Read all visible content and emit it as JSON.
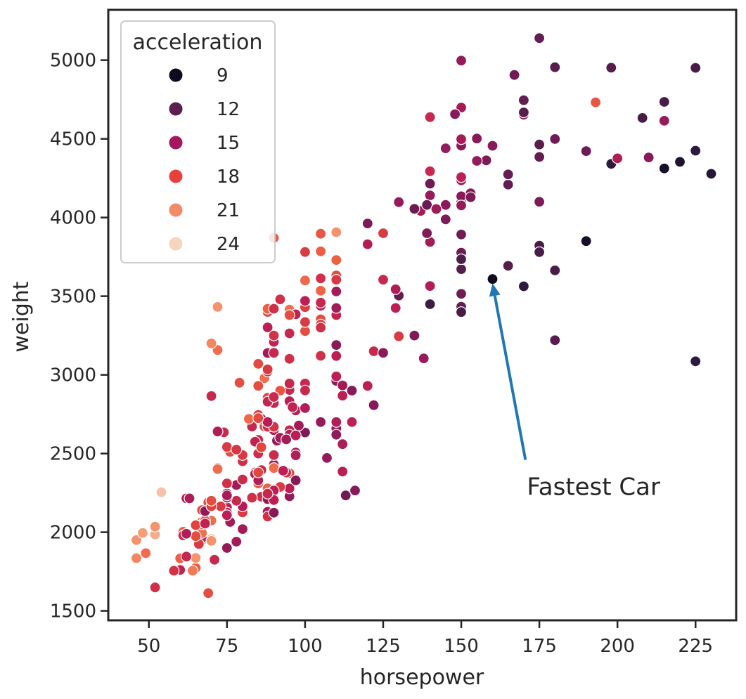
{
  "chart_data": {
    "type": "scatter",
    "xlabel": "horsepower",
    "ylabel": "weight",
    "xlim": [
      37,
      238
    ],
    "ylim": [
      1440,
      5320
    ],
    "x_ticks": [
      50,
      75,
      100,
      125,
      150,
      175,
      200,
      225
    ],
    "y_ticks": [
      1500,
      2000,
      2500,
      3000,
      3500,
      4000,
      4500,
      5000
    ],
    "hue_name": "acceleration",
    "legend": {
      "title": "acceleration",
      "placement": "upper-left",
      "entries": [
        {
          "label": "9",
          "value": 9,
          "color": "#0f0a1e"
        },
        {
          "label": "12",
          "value": 12,
          "color": "#5c1d4f"
        },
        {
          "label": "15",
          "value": 15,
          "color": "#a5175a"
        },
        {
          "label": "18",
          "value": 18,
          "color": "#e8413d"
        },
        {
          "label": "21",
          "value": 21,
          "color": "#f28b68"
        },
        {
          "label": "24",
          "value": 24,
          "color": "#f6d5c0"
        }
      ]
    },
    "annotation": {
      "text": "Fastest Car",
      "point": [
        160,
        3609
      ],
      "text_position": [
        171,
        2290
      ],
      "arrow_color": "#1f77b4"
    },
    "points": [
      [
        130,
        3504,
        12
      ],
      [
        165,
        3693,
        11.5
      ],
      [
        150,
        3436,
        11
      ],
      [
        150,
        3433,
        12
      ],
      [
        140,
        3449,
        10.5
      ],
      [
        198,
        4341,
        10
      ],
      [
        220,
        4354,
        9
      ],
      [
        215,
        4312,
        8.5
      ],
      [
        225,
        4425,
        10
      ],
      [
        190,
        3850,
        8.5
      ],
      [
        170,
        3563,
        10
      ],
      [
        160,
        3609,
        8
      ],
      [
        150,
        3761,
        9.5
      ],
      [
        225,
        3086,
        10
      ],
      [
        95,
        2372,
        15
      ],
      [
        95,
        2833,
        15.5
      ],
      [
        97,
        2774,
        15.5
      ],
      [
        85,
        2587,
        16
      ],
      [
        88,
        2130,
        14.5
      ],
      [
        46,
        1835,
        20.5
      ],
      [
        87,
        2672,
        17.5
      ],
      [
        90,
        2430,
        14.5
      ],
      [
        95,
        2375,
        17.5
      ],
      [
        113,
        2234,
        12.5
      ],
      [
        90,
        2648,
        15
      ],
      [
        215,
        4615,
        14
      ],
      [
        200,
        4376,
        15
      ],
      [
        210,
        4382,
        13.5
      ],
      [
        193,
        4732,
        18.5
      ],
      [
        88,
        2130,
        14.5
      ],
      [
        90,
        2264,
        15.5
      ],
      [
        95,
        2228,
        14
      ],
      [
        100,
        2634,
        13
      ],
      [
        105,
        3439,
        15.5
      ],
      [
        100,
        3329,
        15.5
      ],
      [
        88,
        3302,
        15.5
      ],
      [
        100,
        3288,
        15.5
      ],
      [
        165,
        4209,
        12
      ],
      [
        175,
        4464,
        11.5
      ],
      [
        153,
        4154,
        13.5
      ],
      [
        150,
        4096,
        13
      ],
      [
        180,
        4955,
        11.5
      ],
      [
        170,
        4746,
        12
      ],
      [
        175,
        5140,
        12
      ],
      [
        110,
        2962,
        13.5
      ],
      [
        72,
        2408,
        19
      ],
      [
        100,
        3282,
        15
      ],
      [
        88,
        3139,
        14.5
      ],
      [
        86,
        2220,
        14
      ],
      [
        90,
        2123,
        14
      ],
      [
        70,
        2074,
        19.5
      ],
      [
        76,
        2065,
        14.5
      ],
      [
        65,
        1773,
        19
      ],
      [
        69,
        1613,
        18
      ],
      [
        60,
        1834,
        19
      ],
      [
        70,
        1955,
        20.5
      ],
      [
        95,
        2278,
        15.5
      ],
      [
        80,
        2126,
        17
      ],
      [
        54,
        2254,
        23.5
      ],
      [
        90,
        2408,
        19.5
      ],
      [
        86,
        2226,
        16.5
      ],
      [
        165,
        4274,
        12
      ],
      [
        175,
        4385,
        12
      ],
      [
        150,
        4135,
        13.5
      ],
      [
        153,
        4129,
        13
      ],
      [
        150,
        3672,
        11.5
      ],
      [
        208,
        4633,
        11
      ],
      [
        155,
        4502,
        13.5
      ],
      [
        160,
        4456,
        13.5
      ],
      [
        190,
        4422,
        12.5
      ],
      [
        97,
        2330,
        13.5
      ],
      [
        150,
        3892,
        12.5
      ],
      [
        130,
        4098,
        14
      ],
      [
        140,
        4294,
        16
      ],
      [
        150,
        4077,
        14
      ],
      [
        112,
        2933,
        14.5
      ],
      [
        76,
        2511,
        18
      ],
      [
        87,
        2979,
        19.5
      ],
      [
        69,
        2189,
        18
      ],
      [
        86,
        2395,
        16
      ],
      [
        92,
        2288,
        17
      ],
      [
        97,
        2506,
        14.5
      ],
      [
        80,
        2164,
        15
      ],
      [
        88,
        2100,
        16.5
      ],
      [
        175,
        4100,
        13
      ],
      [
        150,
        3672,
        11.5
      ],
      [
        145,
        3988,
        13
      ],
      [
        137,
        4042,
        14.5
      ],
      [
        150,
        3777,
        12.5
      ],
      [
        198,
        4952,
        11.5
      ],
      [
        150,
        4464,
        12
      ],
      [
        158,
        4363,
        13
      ],
      [
        150,
        4237,
        14.5
      ],
      [
        215,
        4735,
        11
      ],
      [
        225,
        4951,
        11
      ],
      [
        175,
        3821,
        11
      ],
      [
        105,
        3121,
        16.5
      ],
      [
        100,
        3278,
        18
      ],
      [
        100,
        2945,
        16
      ],
      [
        88,
        3021,
        16.5
      ],
      [
        95,
        2904,
        16
      ],
      [
        46,
        1950,
        21
      ],
      [
        150,
        4997,
        14
      ],
      [
        167,
        4906,
        12.5
      ],
      [
        170,
        4654,
        13
      ],
      [
        180,
        4499,
        12.5
      ],
      [
        100,
        2789,
        15
      ],
      [
        88,
        2279,
        19
      ],
      [
        72,
        2401,
        19.5
      ],
      [
        94,
        2379,
        16.5
      ],
      [
        90,
        2124,
        13.5
      ],
      [
        85,
        2310,
        18.5
      ],
      [
        107,
        2472,
        14
      ],
      [
        90,
        2265,
        15.5
      ],
      [
        145,
        4082,
        13
      ],
      [
        230,
        4278,
        9.5
      ],
      [
        49,
        1867,
        19.5
      ],
      [
        75,
        2158,
        15.5
      ],
      [
        91,
        2582,
        14
      ],
      [
        112,
        2868,
        15.5
      ],
      [
        150,
        3399,
        11
      ],
      [
        110,
        2660,
        14
      ],
      [
        122,
        2807,
        13.5
      ],
      [
        180,
        3664,
        11
      ],
      [
        95,
        3102,
        16.5
      ],
      [
        100,
        2901,
        16
      ],
      [
        100,
        3336,
        17
      ],
      [
        67,
        1950,
        19
      ],
      [
        80,
        2451,
        16.5
      ],
      [
        65,
        1836,
        21
      ],
      [
        75,
        2542,
        17
      ],
      [
        100,
        3781,
        17
      ],
      [
        110,
        3632,
        18
      ],
      [
        105,
        3613,
        16.5
      ],
      [
        140,
        4141,
        14
      ],
      [
        150,
        4699,
        14.5
      ],
      [
        150,
        4457,
        13.5
      ],
      [
        140,
        4638,
        16
      ],
      [
        150,
        4257,
        15.5
      ],
      [
        83,
        2219,
        16.5
      ],
      [
        67,
        1963,
        15.5
      ],
      [
        78,
        2300,
        14.5
      ],
      [
        52,
        1649,
        16.5
      ],
      [
        61,
        2003,
        19
      ],
      [
        75,
        2125,
        14.5
      ],
      [
        75,
        2108,
        15.5
      ],
      [
        75,
        2246,
        14
      ],
      [
        97,
        2489,
        15
      ],
      [
        93,
        2391,
        15.5
      ],
      [
        67,
        2000,
        16
      ],
      [
        95,
        3264,
        16
      ],
      [
        105,
        3459,
        16
      ],
      [
        72,
        3432,
        21
      ],
      [
        72,
        3158,
        19.5
      ],
      [
        170,
        4668,
        11.5
      ],
      [
        145,
        4440,
        14
      ],
      [
        150,
        4498,
        14.5
      ],
      [
        148,
        4657,
        13.5
      ],
      [
        110,
        3907,
        21
      ],
      [
        105,
        3897,
        18.5
      ],
      [
        110,
        3730,
        19
      ],
      [
        95,
        2945,
        16
      ],
      [
        110,
        3120,
        15.5
      ],
      [
        110,
        3530,
        14.5
      ],
      [
        129,
        3544,
        15
      ],
      [
        140,
        3845,
        14.5
      ],
      [
        120,
        3962,
        13
      ],
      [
        85,
        2930,
        18
      ],
      [
        90,
        3140,
        16
      ],
      [
        83,
        2671,
        16
      ],
      [
        73,
        2164,
        17
      ],
      [
        78,
        1940,
        14.5
      ],
      [
        52,
        1985,
        22.2
      ],
      [
        61,
        1980,
        16
      ],
      [
        75,
        2310,
        16.5
      ],
      [
        64,
        1755,
        20
      ],
      [
        78,
        2200,
        16
      ],
      [
        70,
        1945,
        21
      ],
      [
        62,
        1845,
        16
      ],
      [
        88,
        2210,
        14
      ],
      [
        110,
        3380,
        15.8
      ],
      [
        105,
        3353,
        18
      ],
      [
        70,
        3200,
        20.5
      ],
      [
        85,
        3070,
        17
      ],
      [
        105,
        3535,
        19.2
      ],
      [
        140,
        4215,
        12.5
      ],
      [
        145,
        4080,
        13.6
      ],
      [
        139,
        3900,
        13.2
      ],
      [
        125,
        3605,
        16
      ],
      [
        48,
        1995,
        21.5
      ],
      [
        66,
        1925,
        17
      ],
      [
        105,
        2700,
        14
      ],
      [
        84,
        2380,
        15.8
      ],
      [
        85,
        2500,
        16.4
      ],
      [
        88,
        2670,
        16.5
      ],
      [
        92,
        2900,
        15.4
      ],
      [
        95,
        3415,
        19.6
      ],
      [
        90,
        3210,
        15.7
      ],
      [
        92,
        2600,
        14.4
      ],
      [
        70,
        2865,
        16
      ],
      [
        74,
        2635,
        16.1
      ],
      [
        75,
        2220,
        14.5
      ],
      [
        67,
        2065,
        17.3
      ],
      [
        67,
        1995,
        19.6
      ],
      [
        67,
        2050,
        18.2
      ],
      [
        110,
        2620,
        13.8
      ],
      [
        85,
        2745,
        17.2
      ],
      [
        92,
        2900,
        18.4
      ],
      [
        112,
        2385,
        15.4
      ],
      [
        96,
        2795,
        15.7
      ],
      [
        84,
        2575,
        15.8
      ],
      [
        90,
        2670,
        16.7
      ],
      [
        86,
        2540,
        17.6
      ],
      [
        52,
        2035,
        21
      ],
      [
        84,
        2370,
        15.4
      ],
      [
        79,
        2950,
        18
      ],
      [
        82,
        2720,
        19.4
      ],
      [
        62,
        2215,
        15
      ],
      [
        71,
        1825,
        16
      ],
      [
        75,
        2234,
        14.6
      ],
      [
        95,
        2648,
        16
      ],
      [
        68,
        2074,
        18.6
      ],
      [
        65,
        2045,
        17.5
      ],
      [
        80,
        2335,
        16.2
      ],
      [
        67,
        2140,
        17.6
      ],
      [
        110,
        2700,
        15
      ],
      [
        85,
        2330,
        14.9
      ],
      [
        88,
        3035,
        16.9
      ],
      [
        90,
        3250,
        16.6
      ],
      [
        86,
        2720,
        14.7
      ],
      [
        130,
        3245,
        17
      ],
      [
        60,
        1760,
        15.7
      ],
      [
        68,
        2134,
        13.8
      ],
      [
        70,
        2165,
        17.4
      ],
      [
        65,
        1975,
        18
      ],
      [
        72,
        2640,
        15
      ],
      [
        98,
        2678,
        14.6
      ],
      [
        80,
        2490,
        16.9
      ],
      [
        58,
        1755,
        16.6
      ],
      [
        90,
        2205,
        15.5
      ],
      [
        112,
        2560,
        14.8
      ],
      [
        62,
        1990,
        15.2
      ],
      [
        88,
        2700,
        15.4
      ],
      [
        95,
        2620,
        15
      ],
      [
        94,
        2590,
        14.5
      ],
      [
        78,
        2525,
        16.8
      ],
      [
        90,
        2490,
        16.2
      ],
      [
        97,
        2615,
        15.4
      ],
      [
        88,
        2855,
        17.5
      ],
      [
        63,
        2215,
        14.9
      ],
      [
        110,
        3190,
        13.5
      ],
      [
        110,
        2990,
        15.5
      ],
      [
        122,
        3150,
        16
      ],
      [
        88,
        3400,
        17.5
      ],
      [
        100,
        3430,
        17.2
      ],
      [
        105,
        3320,
        17.2
      ],
      [
        100,
        3600,
        19.4
      ],
      [
        90,
        3870,
        18.7
      ],
      [
        105,
        3785,
        18.9
      ],
      [
        140,
        3565,
        15
      ],
      [
        150,
        3735,
        11.2
      ],
      [
        180,
        3220,
        11.5
      ],
      [
        150,
        3515,
        12.5
      ],
      [
        175,
        3780,
        11
      ],
      [
        139,
        4080,
        12.2
      ],
      [
        135,
        4055,
        12.4
      ],
      [
        120,
        3830,
        15.1
      ],
      [
        92,
        3480,
        16.5
      ],
      [
        97,
        3385,
        15.7
      ],
      [
        105,
        3300,
        16.4
      ],
      [
        85,
        2380,
        17.6
      ],
      [
        75,
        1900,
        13.9
      ],
      [
        88,
        2245,
        16
      ],
      [
        125,
        3900,
        17
      ],
      [
        110,
        3605,
        16.9
      ],
      [
        116,
        2265,
        13.4
      ],
      [
        125,
        3140,
        13.6
      ],
      [
        100,
        3470,
        15.5
      ],
      [
        68,
        2055,
        15.7
      ],
      [
        129,
        3425,
        15.5
      ],
      [
        138,
        3105,
        14.1
      ],
      [
        135,
        3250,
        13.1
      ],
      [
        155,
        4360,
        14
      ],
      [
        142,
        4054,
        14.3
      ],
      [
        88,
        3420,
        19
      ],
      [
        90,
        3420,
        16.5
      ],
      [
        95,
        3380,
        18
      ],
      [
        115,
        2700,
        15.5
      ],
      [
        115,
        2900,
        13.5
      ],
      [
        90,
        2820,
        16
      ],
      [
        110,
        3425,
        14.5
      ],
      [
        80,
        2020,
        14.5
      ],
      [
        70,
        2200,
        18
      ],
      [
        88,
        2830,
        15.9
      ],
      [
        85,
        3070,
        17.8
      ],
      [
        120,
        2930,
        15.5
      ],
      [
        85,
        2725,
        17.8
      ],
      [
        90,
        2860,
        16.1
      ]
    ]
  },
  "colors": {
    "axis": "#262626",
    "colormap": [
      "#0f0a1e",
      "#2c1a3e",
      "#5c1d4f",
      "#8c1a5b",
      "#bc1e55",
      "#e0413e",
      "#ef6445",
      "#f3966e",
      "#f6bb9b",
      "#f6d5c0"
    ],
    "colormap_domain": [
      8,
      24.8
    ]
  }
}
